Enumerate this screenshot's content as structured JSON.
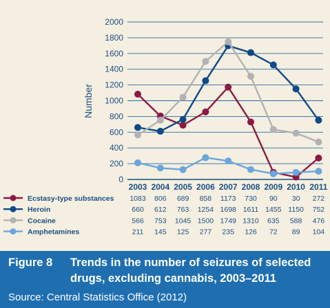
{
  "chart_data": {
    "type": "line",
    "ylabel": "Number",
    "ylim": [
      0,
      2000
    ],
    "yticks": [
      "0",
      "200",
      "400",
      "600",
      "800",
      "1000",
      "1200",
      "1400",
      "1600",
      "1800",
      "2000"
    ],
    "categories": [
      "2003",
      "2004",
      "2005",
      "2006",
      "2007",
      "2008",
      "2009",
      "2010",
      "2011"
    ],
    "grid": true,
    "legend": "table-below",
    "series": [
      {
        "name": "Ecstasy-type substances",
        "color": "#8b1a44",
        "values": [
          1083,
          806,
          689,
          858,
          1173,
          730,
          90,
          30,
          272
        ],
        "labels": [
          "1083",
          "806",
          "689",
          "858",
          "1173",
          "730",
          "90",
          "30",
          "272"
        ]
      },
      {
        "name": "Heroin",
        "color": "#0f4a86",
        "values": [
          660,
          612,
          763,
          1254,
          1698,
          1611,
          1455,
          1150,
          752
        ],
        "labels": [
          "660",
          "612",
          "763",
          "1254",
          "1698",
          "1611",
          "1455",
          "1150",
          "752"
        ]
      },
      {
        "name": "Cocaine",
        "color": "#b2b2b4",
        "values": [
          566,
          753,
          1045,
          1500,
          1749,
          1310,
          635,
          588,
          476
        ],
        "labels": [
          "566",
          "753",
          "1045",
          "1500",
          "1749",
          "1310",
          "635",
          "588",
          "476"
        ]
      },
      {
        "name": "Amphetamines",
        "color": "#6ba6dc",
        "values": [
          211,
          145,
          125,
          277,
          235,
          126,
          72,
          89,
          104
        ],
        "labels": [
          "211",
          "145",
          "125",
          "277",
          "235",
          "126",
          "72",
          "89",
          "104"
        ]
      }
    ]
  },
  "caption": {
    "figure_label": "Figure 8",
    "title_line1": "Trends in the number of seizures of selected",
    "title_line2": "drugs, excluding cannabis, 2003–2011",
    "source": "Source: Central Statistics Office (2012)"
  }
}
